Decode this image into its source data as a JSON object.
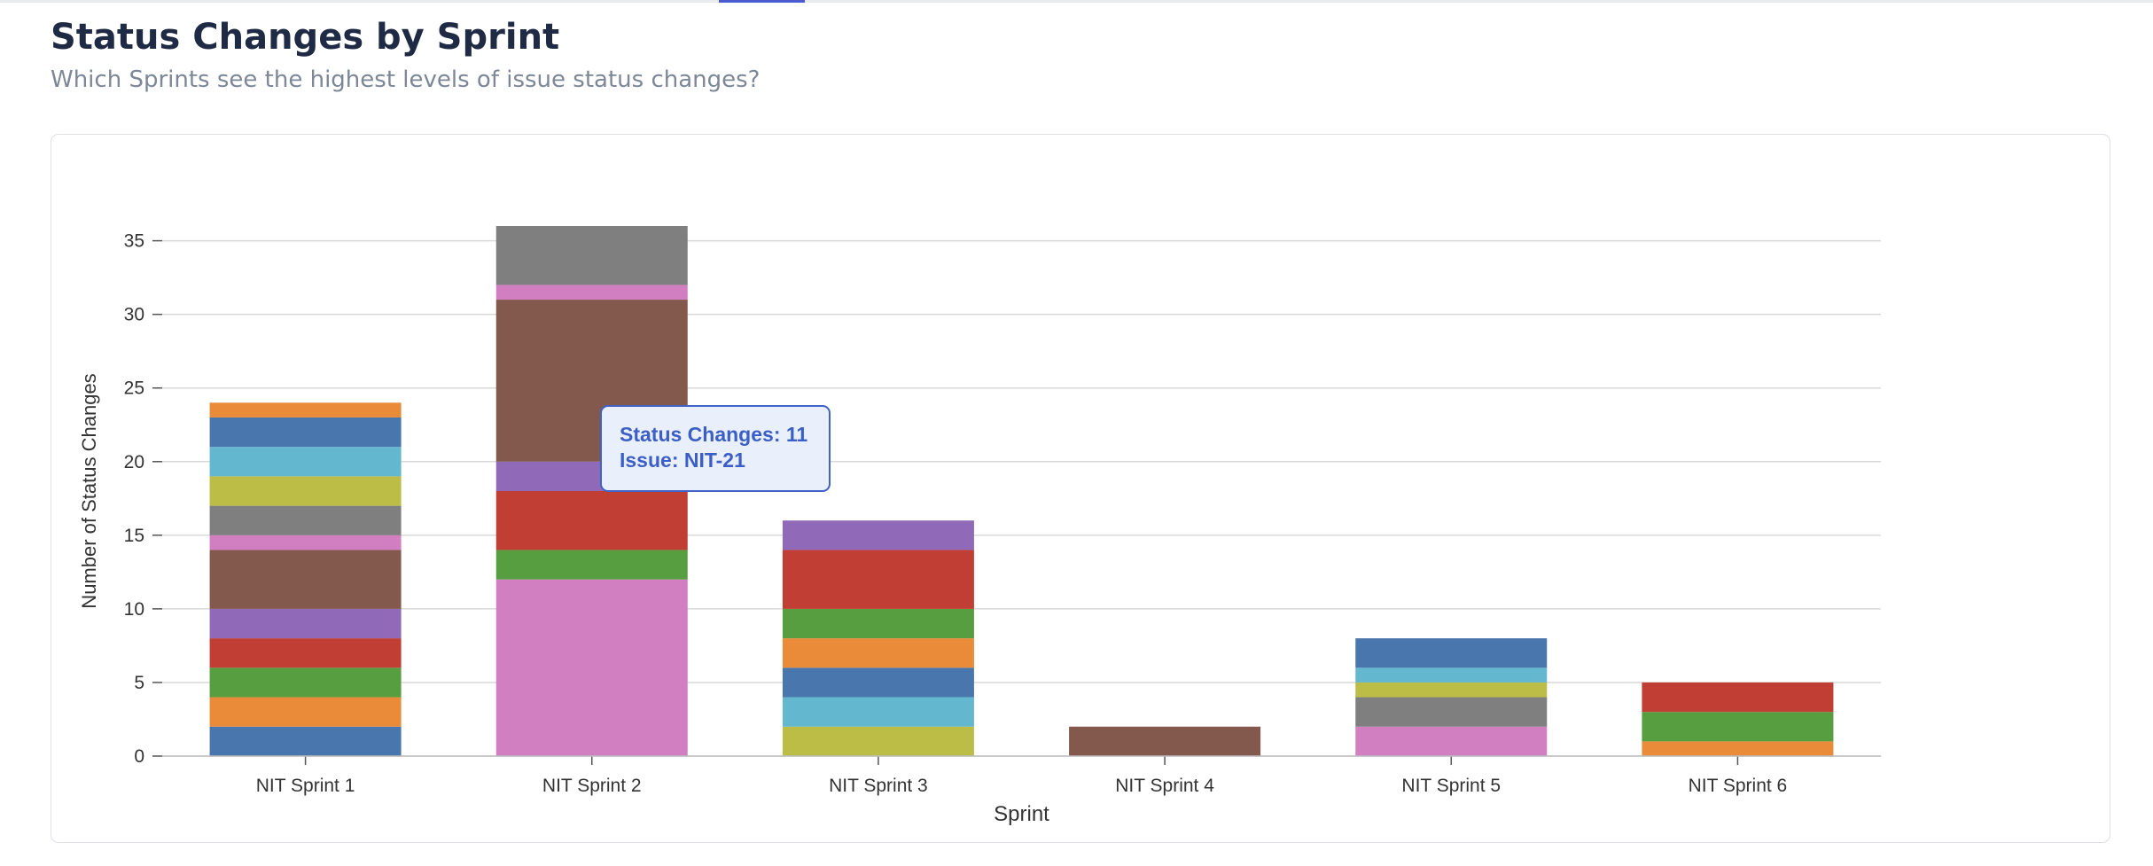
{
  "header": {
    "title": "Status Changes by Sprint",
    "subtitle": "Which Sprints see the highest levels of issue status changes?"
  },
  "tooltip": {
    "line1": "Status Changes: 11",
    "line2": "Issue: NIT-21"
  },
  "colors": {
    "blue": "#4a76ae",
    "orange": "#e98b38",
    "green": "#569e3f",
    "red": "#c03e33",
    "purple": "#9069b8",
    "brown": "#84594d",
    "pink": "#d27fc1",
    "gray": "#7f7f7f",
    "olive": "#bcbd46",
    "cyan": "#63b7cf",
    "gridline": "#d9d9d9",
    "tooltip_border": "#3f63c7"
  },
  "chart_data": {
    "type": "bar",
    "stacked": true,
    "title": "",
    "xlabel": "Sprint",
    "ylabel": "Number of Status Changes",
    "ylim": [
      0,
      36
    ],
    "yticks": [
      0,
      5,
      10,
      15,
      20,
      25,
      30,
      35
    ],
    "grid": true,
    "legend": "none",
    "categories": [
      "NIT Sprint 1",
      "NIT Sprint 2",
      "NIT Sprint 3",
      "NIT Sprint 4",
      "NIT Sprint 5",
      "NIT Sprint 6"
    ],
    "stacks": [
      [
        {
          "value": 2,
          "color": "blue"
        },
        {
          "value": 2,
          "color": "orange"
        },
        {
          "value": 2,
          "color": "green"
        },
        {
          "value": 2,
          "color": "red"
        },
        {
          "value": 2,
          "color": "purple"
        },
        {
          "value": 4,
          "color": "brown"
        },
        {
          "value": 1,
          "color": "pink"
        },
        {
          "value": 2,
          "color": "gray"
        },
        {
          "value": 2,
          "color": "olive"
        },
        {
          "value": 2,
          "color": "cyan"
        },
        {
          "value": 2,
          "color": "blue"
        },
        {
          "value": 1,
          "color": "orange"
        }
      ],
      [
        {
          "value": 12,
          "color": "pink"
        },
        {
          "value": 2,
          "color": "green"
        },
        {
          "value": 4,
          "color": "red"
        },
        {
          "value": 2,
          "color": "purple"
        },
        {
          "value": 11,
          "color": "brown"
        },
        {
          "value": 1,
          "color": "pink"
        },
        {
          "value": 4,
          "color": "gray"
        }
      ],
      [
        {
          "value": 2,
          "color": "olive"
        },
        {
          "value": 2,
          "color": "cyan"
        },
        {
          "value": 2,
          "color": "blue"
        },
        {
          "value": 2,
          "color": "orange"
        },
        {
          "value": 2,
          "color": "green"
        },
        {
          "value": 4,
          "color": "red"
        },
        {
          "value": 2,
          "color": "purple"
        }
      ],
      [
        {
          "value": 2,
          "color": "brown"
        }
      ],
      [
        {
          "value": 2,
          "color": "pink"
        },
        {
          "value": 2,
          "color": "gray"
        },
        {
          "value": 1,
          "color": "olive"
        },
        {
          "value": 1,
          "color": "cyan"
        },
        {
          "value": 2,
          "color": "blue"
        }
      ],
      [
        {
          "value": 1,
          "color": "orange"
        },
        {
          "value": 2,
          "color": "green"
        },
        {
          "value": 2,
          "color": "red"
        }
      ]
    ]
  }
}
